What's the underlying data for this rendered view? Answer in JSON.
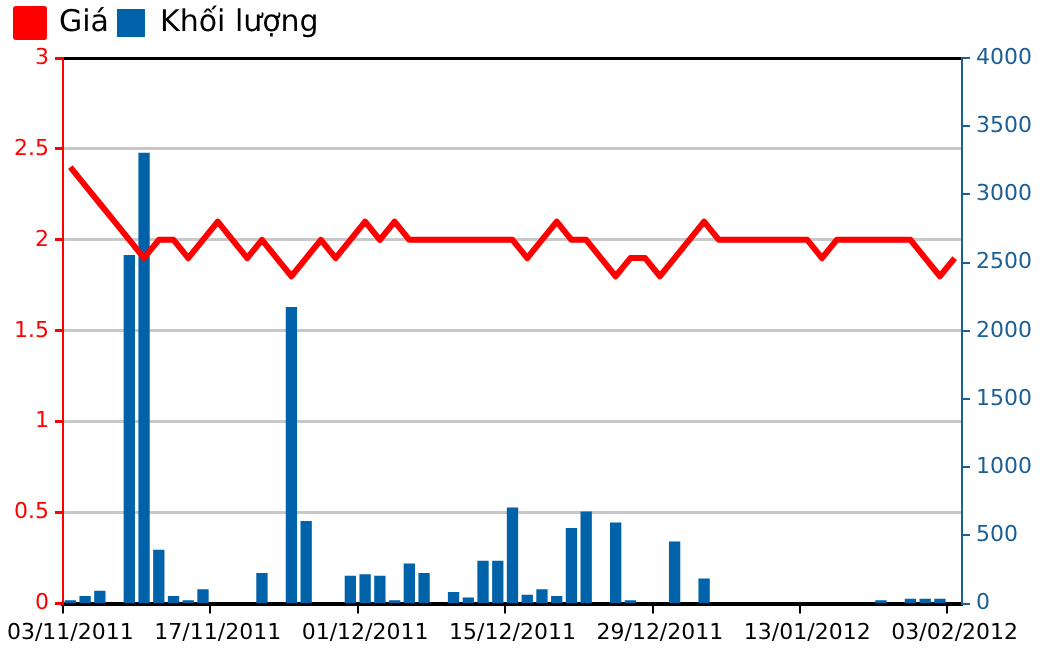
{
  "chart_data": {
    "type": "bar",
    "categories": [
      "03/11/2011",
      null,
      null,
      null,
      null,
      null,
      null,
      null,
      null,
      null,
      "17/11/2011",
      null,
      null,
      null,
      null,
      null,
      null,
      null,
      null,
      null,
      "01/12/2011",
      null,
      null,
      null,
      null,
      null,
      null,
      null,
      null,
      null,
      "15/12/2011",
      null,
      null,
      null,
      null,
      null,
      null,
      null,
      null,
      null,
      "29/12/2011",
      null,
      null,
      null,
      null,
      null,
      null,
      null,
      null,
      null,
      "13/01/2012",
      null,
      null,
      null,
      null,
      null,
      null,
      null,
      null,
      null,
      "03/02/2012"
    ],
    "series": [
      {
        "name": "Giá",
        "type": "line",
        "color": "#ff0000",
        "values": [
          2.4,
          2.3,
          2.2,
          2.1,
          2.0,
          1.9,
          2.0,
          2.0,
          1.9,
          2.0,
          2.1,
          2.0,
          1.9,
          2.0,
          1.9,
          1.8,
          1.9,
          2.0,
          1.9,
          2.0,
          2.1,
          2.0,
          2.1,
          2.0,
          2.0,
          2.0,
          2.0,
          2.0,
          2.0,
          2.0,
          2.0,
          1.9,
          2.0,
          2.1,
          2.0,
          2.0,
          1.9,
          1.8,
          1.9,
          1.9,
          1.8,
          1.9,
          2.0,
          2.1,
          2.0,
          2.0,
          2.0,
          2.0,
          2.0,
          2.0,
          2.0,
          1.9,
          2.0,
          2.0,
          2.0,
          2.0,
          2.0,
          2.0,
          1.9,
          1.8,
          1.9
        ]
      },
      {
        "name": "Khối lượng",
        "axis": "y2",
        "color": "#0062a8",
        "values": [
          20,
          50,
          90,
          null,
          2550,
          3300,
          390,
          50,
          20,
          100,
          null,
          null,
          null,
          220,
          null,
          2170,
          600,
          null,
          null,
          200,
          210,
          200,
          20,
          290,
          220,
          null,
          80,
          40,
          310,
          310,
          700,
          60,
          100,
          50,
          550,
          670,
          null,
          590,
          20,
          null,
          null,
          450,
          null,
          180,
          null,
          null,
          null,
          null,
          null,
          null,
          null,
          null,
          null,
          null,
          null,
          20,
          null,
          30,
          30,
          30,
          null
        ]
      }
    ],
    "ylim": [
      0,
      3
    ],
    "yticks": [
      0,
      0.5,
      1,
      1.5,
      2,
      2.5,
      3
    ],
    "y2lim": [
      0,
      4000
    ],
    "y2ticks": [
      0,
      500,
      1000,
      1500,
      2000,
      2500,
      3000,
      3500,
      4000
    ],
    "grid": "y",
    "legend": "top left",
    "marker": "none"
  }
}
